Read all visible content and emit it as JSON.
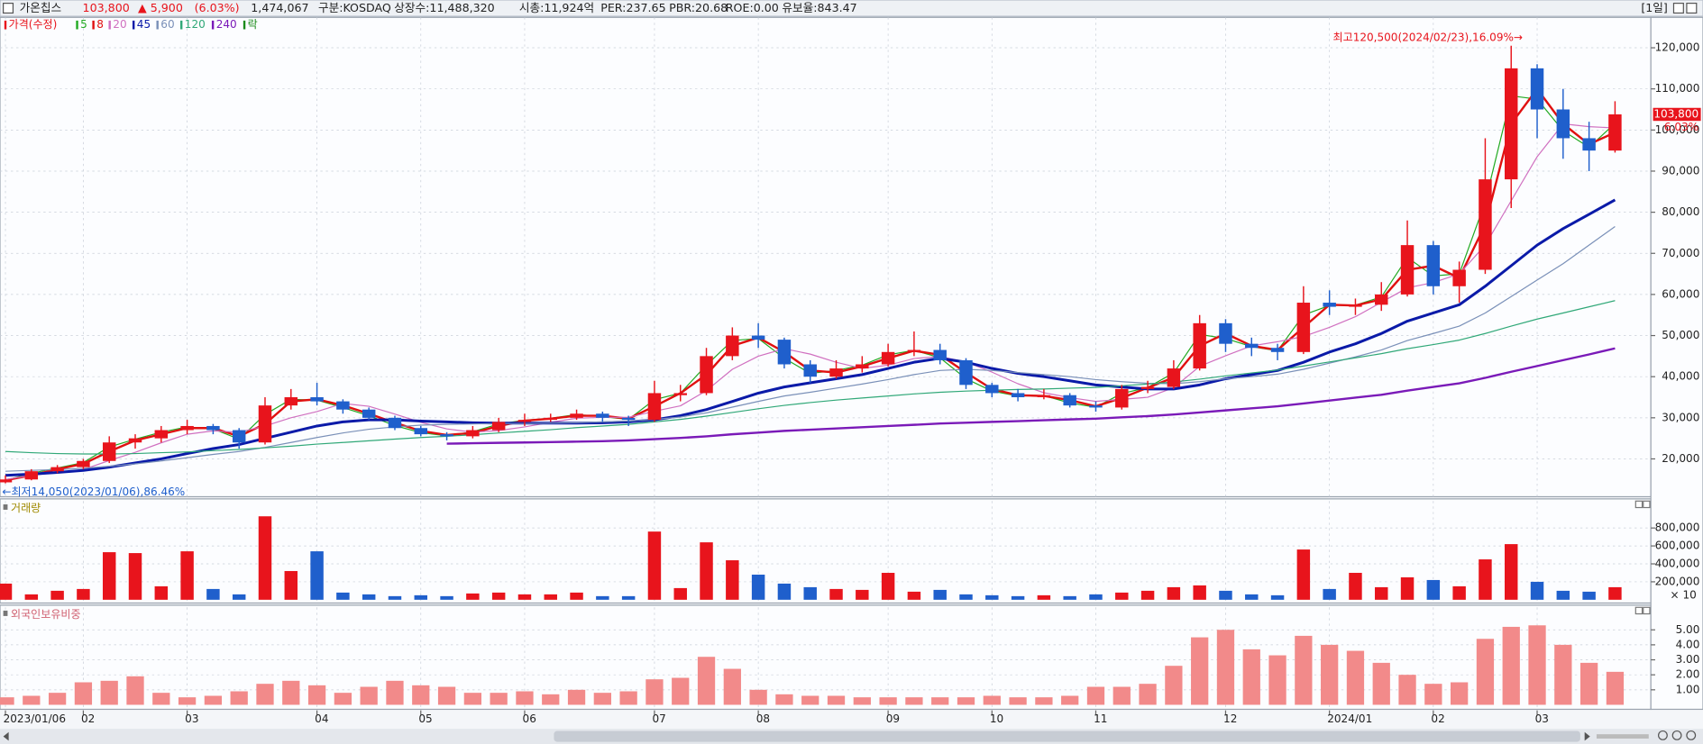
{
  "header": {
    "name": "가온칩스",
    "price": "103,800",
    "change": "▲ 5,900",
    "change_pct": "(6.03%)",
    "volume": "1,474,067",
    "market": "구분:KOSDAQ",
    "shares": "상장수:11,488,320",
    "cap": "시총:11,924억",
    "per": "PER:237.65",
    "pbr": "PBR:20.68",
    "roe": "ROE:0.00",
    "reserve": "유보율:843.47",
    "period": "[1일]"
  },
  "chart_data": [
    {
      "type": "candlestick",
      "price_legend": {
        "text": "가격(수정)",
        "color": "#e8141c"
      },
      "lock_legend": {
        "text": "락",
        "color": "#1a8a1a"
      },
      "up_color": "#e8141c",
      "down_color": "#1f5fcc",
      "grid": true,
      "annotations": [
        "최고120,500(2024/02/23),16.09%→",
        "←최저14,050(2023/01/06),86.46%"
      ],
      "last_price_label": "103,800",
      "last_change_label": "6.03%",
      "categories": [
        "2023/01/06",
        null,
        null,
        "02",
        null,
        null,
        null,
        "03",
        null,
        null,
        null,
        null,
        "04",
        null,
        null,
        null,
        "05",
        null,
        null,
        null,
        "06",
        null,
        null,
        null,
        null,
        "07",
        null,
        null,
        null,
        "08",
        null,
        null,
        null,
        null,
        "09",
        null,
        null,
        null,
        "10",
        null,
        null,
        null,
        "11",
        null,
        null,
        null,
        null,
        "12",
        null,
        null,
        null,
        "2024/01",
        null,
        null,
        null,
        "02",
        null,
        null,
        null,
        "03",
        null,
        null,
        null
      ],
      "open": [
        14300,
        15000,
        17000,
        18000,
        19500,
        24000,
        25000,
        27000,
        28000,
        27000,
        24000,
        33000,
        35000,
        34000,
        32000,
        30000,
        27500,
        26000,
        25500,
        27000,
        29000,
        29500,
        30000,
        31000,
        30000,
        29500,
        35500,
        36000,
        45000,
        50000,
        49000,
        43000,
        40000,
        42000,
        43000,
        46000,
        46500,
        44000,
        38000,
        36000,
        35000,
        35500,
        33000,
        32500,
        37000,
        37500,
        42000,
        53000,
        48000,
        47000,
        46000,
        58000,
        57000,
        57500,
        60000,
        72000,
        62000,
        66000,
        88000,
        115000,
        105000,
        98000,
        95000
      ],
      "high": [
        16000,
        17500,
        18500,
        20000,
        25500,
        26000,
        28000,
        29500,
        28500,
        27500,
        35000,
        37000,
        38500,
        34500,
        32500,
        30500,
        28000,
        26500,
        28000,
        30000,
        31000,
        31000,
        32000,
        31500,
        30500,
        39000,
        38000,
        47000,
        52000,
        53000,
        49500,
        44000,
        44000,
        45000,
        48000,
        51000,
        48000,
        44500,
        38500,
        37000,
        37000,
        36000,
        34000,
        38000,
        39000,
        44000,
        55000,
        54000,
        49500,
        48000,
        62000,
        61000,
        59000,
        63000,
        78000,
        73000,
        68000,
        98000,
        120500,
        116000,
        110000,
        102000,
        107000
      ],
      "low": [
        14050,
        14800,
        16500,
        17500,
        19000,
        22500,
        24000,
        26000,
        26000,
        22500,
        23500,
        32000,
        33000,
        31000,
        29500,
        27000,
        25500,
        24500,
        25000,
        26500,
        28000,
        29000,
        29500,
        29000,
        28000,
        29000,
        34000,
        35500,
        44000,
        47000,
        42000,
        38500,
        39500,
        41000,
        42500,
        45000,
        43000,
        37000,
        35000,
        34000,
        34500,
        32500,
        31500,
        32000,
        36000,
        37000,
        41500,
        46000,
        45000,
        44000,
        45500,
        55000,
        55000,
        56000,
        59500,
        60000,
        58000,
        65000,
        81000,
        98000,
        93000,
        90000,
        94500
      ],
      "close": [
        15000,
        17000,
        18000,
        19500,
        24000,
        25000,
        27000,
        28000,
        27000,
        24000,
        33000,
        35000,
        34000,
        32000,
        30000,
        27500,
        26000,
        25500,
        27000,
        29000,
        29500,
        30000,
        31000,
        30000,
        29500,
        36000,
        36000,
        45000,
        50000,
        49000,
        43000,
        40000,
        42000,
        43000,
        46000,
        46500,
        44000,
        38000,
        36000,
        35000,
        35500,
        33000,
        32500,
        37000,
        37500,
        42000,
        53000,
        48000,
        47000,
        46000,
        58000,
        57000,
        57500,
        60000,
        72000,
        62000,
        66000,
        88000,
        115000,
        105000,
        98000,
        95000,
        103800
      ],
      "series": [
        {
          "name": "5",
          "color": "#22aa22",
          "width": 1,
          "values": [
            14800,
            16500,
            17800,
            19100,
            22900,
            24800,
            26500,
            27800,
            27300,
            24800,
            30800,
            34500,
            34300,
            32500,
            30500,
            28100,
            26400,
            25600,
            26600,
            28500,
            29400,
            29900,
            30800,
            30300,
            29600,
            34400,
            36000,
            42800,
            48800,
            49300,
            44500,
            40800,
            41500,
            42800,
            45300,
            46400,
            44600,
            39500,
            36500,
            35300,
            35400,
            33600,
            32600,
            35900,
            37400,
            40900,
            50300,
            49300,
            47300,
            46300,
            55000,
            57300,
            57400,
            59400,
            69000,
            64500,
            65000,
            82500,
            108300,
            107500,
            99800,
            95800,
            101600
          ]
        },
        {
          "name": "8",
          "color": "#e01010",
          "width": 2,
          "values": [
            14800,
            16000,
            17500,
            18800,
            21800,
            24500,
            26000,
            27500,
            27500,
            25500,
            28500,
            34000,
            34500,
            33000,
            31000,
            28800,
            26800,
            25800,
            26300,
            28000,
            29300,
            29800,
            30500,
            30500,
            29800,
            32800,
            36000,
            40500,
            47500,
            49500,
            46000,
            41500,
            41000,
            42500,
            44500,
            46300,
            45300,
            41000,
            37000,
            35500,
            35300,
            34300,
            32800,
            34800,
            37300,
            39800,
            47500,
            50500,
            47500,
            46500,
            52000,
            57500,
            57300,
            58800,
            66000,
            67000,
            64000,
            77000,
            101500,
            110000,
            101500,
            96500,
            99400
          ]
        },
        {
          "name": "20",
          "color": "#d070c0",
          "width": 1,
          "values": [
            15000,
            16000,
            16700,
            17400,
            19600,
            21600,
            23900,
            26000,
            26800,
            26500,
            28000,
            30000,
            31500,
            33500,
            32800,
            30900,
            28900,
            27300,
            26500,
            26900,
            27800,
            28900,
            29900,
            30100,
            30100,
            31600,
            32900,
            36600,
            41800,
            45000,
            46800,
            45500,
            43500,
            42000,
            42800,
            44400,
            44900,
            43600,
            41100,
            38300,
            36100,
            34900,
            34000,
            34500,
            35000,
            37300,
            42500,
            45100,
            47500,
            48500,
            49800,
            52000,
            54600,
            58100,
            61600,
            62900,
            65000,
            72000,
            82800,
            93500,
            101500,
            100800,
            100500
          ]
        },
        {
          "name": "45",
          "color": "#0a1aa8",
          "width": 2.5,
          "values": [
            16000,
            16300,
            16700,
            17200,
            18000,
            19000,
            20000,
            21300,
            22500,
            23500,
            25000,
            26500,
            28000,
            29000,
            29500,
            29500,
            29200,
            29000,
            28800,
            28700,
            28700,
            28700,
            28700,
            28800,
            29000,
            29500,
            30500,
            32000,
            34000,
            36000,
            37500,
            38500,
            39500,
            40500,
            42000,
            43500,
            44500,
            43500,
            42000,
            40800,
            40000,
            39000,
            38000,
            37500,
            37000,
            37000,
            38000,
            39500,
            40500,
            41500,
            43500,
            46000,
            48000,
            50500,
            53500,
            55500,
            57500,
            62000,
            67000,
            72000,
            76000,
            79500,
            83000
          ]
        },
        {
          "name": "60",
          "color": "#7a90b8",
          "width": 1,
          "values": [
            17000,
            17200,
            17400,
            17700,
            18200,
            18800,
            19500,
            20300,
            21100,
            21800,
            22800,
            24000,
            25200,
            26300,
            27200,
            27800,
            28200,
            28400,
            28500,
            28600,
            28600,
            28700,
            28800,
            29000,
            29200,
            29600,
            30200,
            31200,
            32600,
            34000,
            35300,
            36200,
            37200,
            38200,
            39300,
            40500,
            41500,
            41800,
            41500,
            41000,
            40500,
            40000,
            39300,
            38800,
            38400,
            38300,
            38800,
            39500,
            40000,
            40600,
            41800,
            43300,
            44800,
            46500,
            48800,
            50500,
            52300,
            55500,
            59500,
            63500,
            67500,
            72000,
            76500
          ]
        },
        {
          "name": "120",
          "color": "#30a878",
          "width": 1,
          "values": [
            21800,
            21500,
            21300,
            21200,
            21200,
            21300,
            21500,
            21700,
            22000,
            22300,
            22700,
            23100,
            23600,
            24000,
            24400,
            24800,
            25200,
            25500,
            25900,
            26300,
            26700,
            27100,
            27600,
            28000,
            28400,
            29000,
            29600,
            30400,
            31300,
            32200,
            33000,
            33700,
            34300,
            34800,
            35300,
            35800,
            36200,
            36500,
            36700,
            36900,
            37000,
            37200,
            37400,
            37800,
            38200,
            38700,
            39400,
            40200,
            40900,
            41600,
            42600,
            43600,
            44600,
            45600,
            46800,
            47800,
            48900,
            50500,
            52300,
            54000,
            55500,
            57000,
            58500
          ]
        },
        {
          "name": "240",
          "color": "#7a1ab8",
          "width": 2,
          "values": [
            null,
            null,
            null,
            null,
            null,
            null,
            null,
            null,
            null,
            null,
            null,
            null,
            null,
            null,
            null,
            null,
            null,
            23700,
            23800,
            23900,
            24000,
            24100,
            24200,
            24300,
            24500,
            24800,
            25100,
            25500,
            26000,
            26400,
            26800,
            27100,
            27400,
            27700,
            28000,
            28300,
            28600,
            28800,
            29000,
            29200,
            29400,
            29600,
            29800,
            30100,
            30400,
            30800,
            31300,
            31800,
            32300,
            32800,
            33500,
            34200,
            34900,
            35600,
            36600,
            37500,
            38400,
            39700,
            41200,
            42600,
            44000,
            45400,
            46900
          ]
        }
      ],
      "ylim": [
        10800,
        127400
      ],
      "yticks": [
        {
          "value": 20000,
          "label": "20,000"
        },
        {
          "value": 30000,
          "label": "30,000"
        },
        {
          "value": 40000,
          "label": "40,000"
        },
        {
          "value": 50000,
          "label": "50,000"
        },
        {
          "value": 60000,
          "label": "60,000"
        },
        {
          "value": 70000,
          "label": "70,000"
        },
        {
          "value": 80000,
          "label": "80,000"
        },
        {
          "value": 90000,
          "label": "90,000"
        },
        {
          "value": 100000,
          "label": "100,000"
        },
        {
          "value": 110000,
          "label": "110,000"
        },
        {
          "value": 120000,
          "label": "120,000"
        }
      ]
    },
    {
      "type": "bar",
      "title": "거래량",
      "unit_label": "× 10",
      "grid": true,
      "values": [
        180000,
        60000,
        100000,
        120000,
        530000,
        520000,
        150000,
        540000,
        120000,
        60000,
        930000,
        320000,
        540000,
        80000,
        60000,
        40000,
        50000,
        40000,
        70000,
        80000,
        60000,
        60000,
        80000,
        40000,
        40000,
        760000,
        130000,
        640000,
        440000,
        280000,
        180000,
        140000,
        120000,
        110000,
        300000,
        90000,
        110000,
        60000,
        50000,
        40000,
        50000,
        40000,
        60000,
        80000,
        100000,
        140000,
        160000,
        100000,
        60000,
        50000,
        560000,
        120000,
        300000,
        140000,
        250000,
        220000,
        150000,
        450000,
        620000,
        200000,
        100000,
        90000,
        140000
      ],
      "ylim": [
        0,
        1100000
      ],
      "yticks": [
        {
          "value": 200000,
          "label": "200,000"
        },
        {
          "value": 400000,
          "label": "400,000"
        },
        {
          "value": 600000,
          "label": "600,000"
        },
        {
          "value": 800000,
          "label": "800,000"
        }
      ]
    },
    {
      "type": "bar",
      "title": "외국인보유비중",
      "color": "#f28a8a",
      "grid": true,
      "values": [
        0.5,
        0.6,
        0.8,
        1.5,
        1.6,
        1.9,
        0.8,
        0.5,
        0.6,
        0.9,
        1.4,
        1.6,
        1.3,
        0.8,
        1.2,
        1.6,
        1.3,
        1.2,
        0.8,
        0.8,
        0.9,
        0.7,
        1.0,
        0.8,
        0.9,
        1.7,
        1.8,
        3.2,
        2.4,
        1.0,
        0.7,
        0.6,
        0.6,
        0.5,
        0.5,
        0.5,
        0.5,
        0.5,
        0.6,
        0.5,
        0.5,
        0.6,
        1.2,
        1.2,
        1.4,
        2.6,
        4.5,
        5.0,
        3.7,
        3.3,
        4.6,
        4.0,
        3.6,
        2.8,
        2.0,
        1.4,
        1.5,
        4.4,
        5.2,
        5.3,
        4.0,
        2.8,
        2.2
      ],
      "ylim": [
        -0.3,
        6.5
      ],
      "yticks": [
        {
          "value": 1,
          "label": "1.00"
        },
        {
          "value": 2,
          "label": "2.00"
        },
        {
          "value": 3,
          "label": "3.00"
        },
        {
          "value": 4,
          "label": "4.00"
        },
        {
          "value": 5,
          "label": "5.00"
        }
      ]
    }
  ]
}
